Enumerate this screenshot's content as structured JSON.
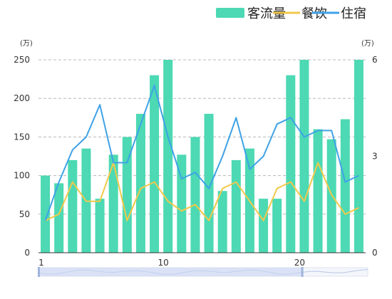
{
  "chart_data": {
    "type": "bar",
    "categories": [
      "1",
      "2",
      "3",
      "4",
      "5",
      "6",
      "7",
      "8",
      "9",
      "10",
      "11",
      "12",
      "13",
      "14",
      "15",
      "16",
      "17",
      "18",
      "19",
      "20",
      "21",
      "22",
      "23",
      "24"
    ],
    "x_tick_labels": [
      "1",
      "10",
      "20"
    ],
    "y_left": {
      "unit": "(万)",
      "ylim": [
        0,
        250
      ],
      "ticks": [
        "0",
        "50",
        "100",
        "150",
        "200",
        "250"
      ]
    },
    "y_right": {
      "unit": "(万)",
      "ylim": [
        0,
        6
      ],
      "ticks": [
        "0",
        "3",
        "6"
      ]
    },
    "grid": true,
    "legend_position": "top-right",
    "series": [
      {
        "name": "客流量",
        "type": "bar",
        "axis": "left",
        "color": "#4cd9b3",
        "values": [
          100,
          90,
          120,
          135,
          70,
          127,
          150,
          180,
          230,
          250,
          127,
          150,
          180,
          80,
          120,
          135,
          70,
          70,
          230,
          250,
          160,
          147,
          173,
          250
        ]
      },
      {
        "name": "餐饮",
        "type": "line",
        "axis": "right",
        "color": "#f2c94c",
        "values": [
          1.0,
          1.2,
          2.2,
          1.6,
          1.6,
          2.8,
          1.0,
          2.0,
          2.2,
          1.6,
          1.3,
          1.5,
          1.0,
          2.0,
          2.2,
          1.6,
          1.0,
          2.0,
          2.2,
          1.6,
          2.8,
          1.8,
          1.2,
          1.4
        ]
      },
      {
        "name": "住宿",
        "type": "line",
        "axis": "right",
        "color": "#3fa2e6",
        "values": [
          1.0,
          2.2,
          3.2,
          3.6,
          4.6,
          2.8,
          2.8,
          4.0,
          5.2,
          3.6,
          2.3,
          2.5,
          2.0,
          3.0,
          4.2,
          2.6,
          3.0,
          4.0,
          4.2,
          3.6,
          3.8,
          3.8,
          2.2,
          2.4
        ]
      }
    ],
    "data_zoom": {
      "start": 0,
      "end": 0.8
    }
  }
}
